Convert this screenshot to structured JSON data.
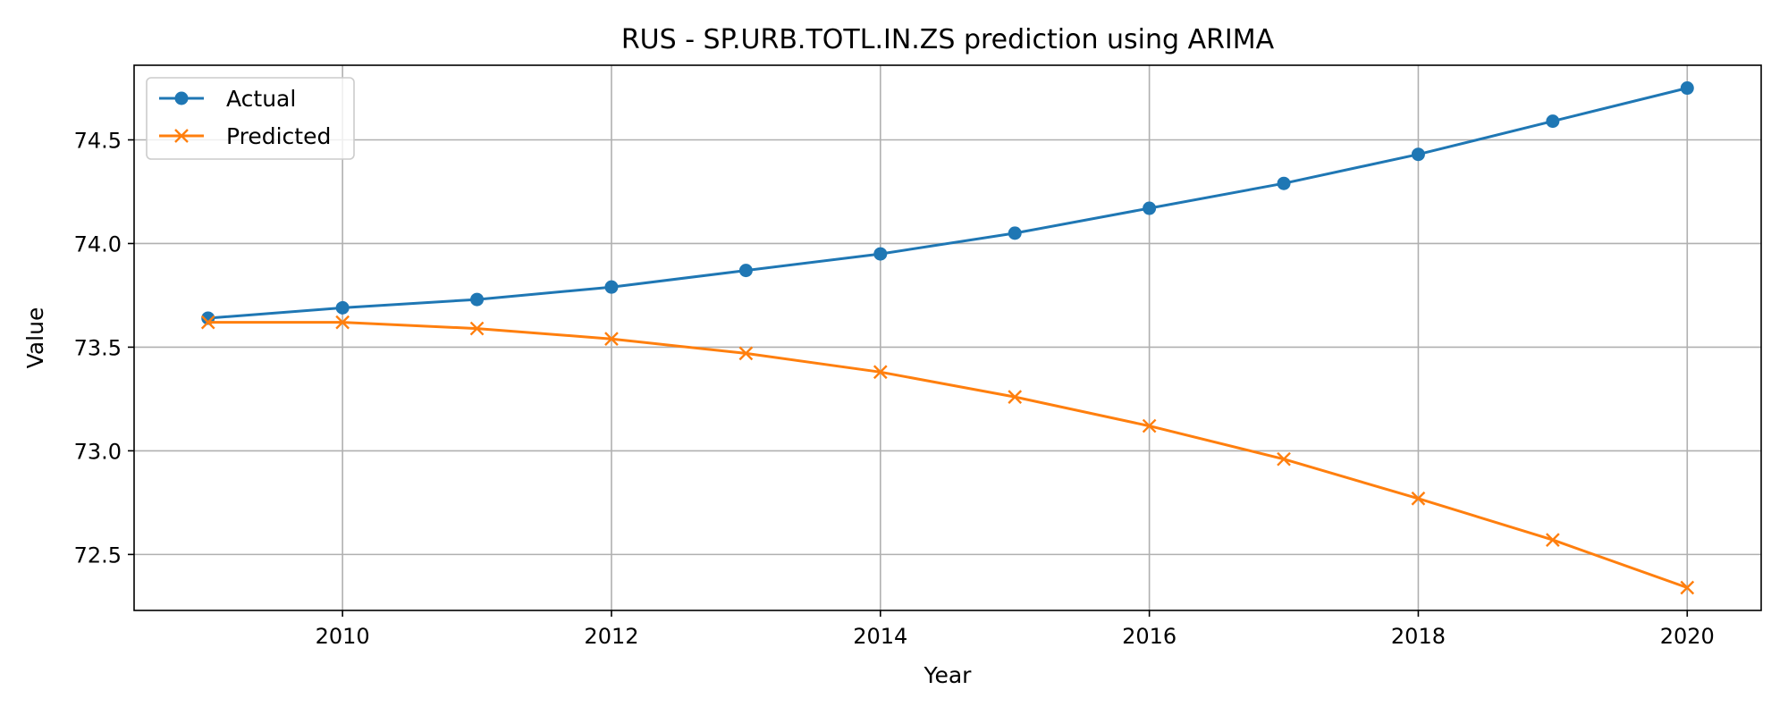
{
  "chart_data": {
    "type": "line",
    "title": "RUS - SP.URB.TOTL.IN.ZS prediction using ARIMA",
    "xlabel": "Year",
    "ylabel": "Value",
    "x": [
      2009,
      2010,
      2011,
      2012,
      2013,
      2014,
      2015,
      2016,
      2017,
      2018,
      2019,
      2020
    ],
    "xlim": [
      2008.45,
      2020.55
    ],
    "ylim": [
      72.23,
      74.86
    ],
    "xticks": [
      2010,
      2012,
      2014,
      2016,
      2018,
      2020
    ],
    "yticks": [
      72.5,
      73.0,
      73.5,
      74.0,
      74.5
    ],
    "ytick_labels": [
      "72.5",
      "73.0",
      "73.5",
      "74.0",
      "74.5"
    ],
    "grid": true,
    "legend_position": "top-left",
    "series": [
      {
        "name": "Actual",
        "color": "#1f77b4",
        "marker": "circle",
        "values": [
          73.64,
          73.69,
          73.73,
          73.79,
          73.87,
          73.95,
          74.05,
          74.17,
          74.29,
          74.43,
          74.59,
          74.75
        ]
      },
      {
        "name": "Predicted",
        "color": "#ff7f0e",
        "marker": "x",
        "values": [
          73.62,
          73.62,
          73.59,
          73.54,
          73.47,
          73.38,
          73.26,
          73.12,
          72.96,
          72.77,
          72.57,
          72.34
        ]
      }
    ]
  }
}
